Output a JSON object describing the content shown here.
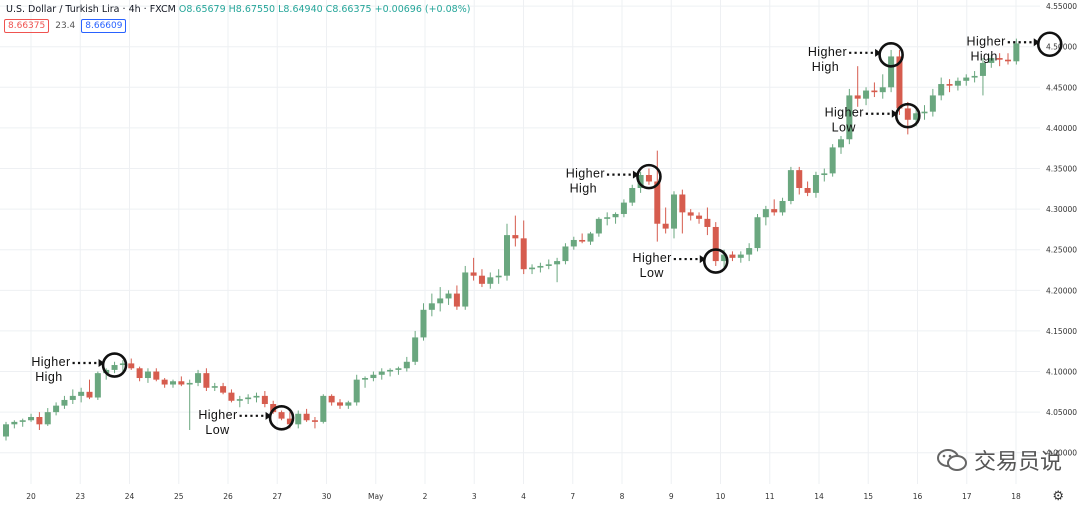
{
  "header": {
    "symbol": "U.S. Dollar / Turkish Lira",
    "interval": "4h",
    "source": "FXCM",
    "ohlc_text": "O8.65679 H8.67550 L8.64940 C8.66375 +0.00696 (+0.08%)",
    "bid": "8.66375",
    "spread": "23.4",
    "ask": "8.66609"
  },
  "watermark": {
    "text": "交易员说",
    "icon": "wechat-icon"
  },
  "settings": {
    "icon": "gear-icon"
  },
  "colors": {
    "up": "#6aa77f",
    "down": "#d65c4e",
    "annotation": "#111111"
  },
  "chart_data": {
    "type": "candlestick",
    "y_axis": {
      "position": "right",
      "min": 3.9615,
      "max": 4.5575,
      "ticks": [
        "4.55000",
        "4.50000",
        "4.45000",
        "4.40000",
        "4.35000",
        "4.30000",
        "4.25000",
        "4.20000",
        "4.15000",
        "4.10000",
        "4.05000",
        "4.00000"
      ]
    },
    "x_axis": {
      "labels": [
        "20",
        "23",
        "24",
        "25",
        "26",
        "27",
        "30",
        "May",
        "2",
        "3",
        "4",
        "7",
        "8",
        "9",
        "10",
        "11",
        "14",
        "15",
        "16",
        "17",
        "18"
      ]
    },
    "grid": true,
    "candles": [
      [
        4.02,
        4.038,
        4.015,
        4.035
      ],
      [
        4.035,
        4.04,
        4.03,
        4.038
      ],
      [
        4.038,
        4.042,
        4.032,
        4.04
      ],
      [
        4.04,
        4.048,
        4.038,
        4.044
      ],
      [
        4.044,
        4.05,
        4.028,
        4.035
      ],
      [
        4.035,
        4.055,
        4.033,
        4.05
      ],
      [
        4.05,
        4.062,
        4.046,
        4.058
      ],
      [
        4.058,
        4.07,
        4.054,
        4.065
      ],
      [
        4.065,
        4.078,
        4.06,
        4.07
      ],
      [
        4.07,
        4.08,
        4.062,
        4.075
      ],
      [
        4.075,
        4.09,
        4.066,
        4.068
      ],
      [
        4.068,
        4.1,
        4.065,
        4.098
      ],
      [
        4.098,
        4.104,
        4.09,
        4.102
      ],
      [
        4.102,
        4.112,
        4.098,
        4.108
      ],
      [
        4.108,
        4.114,
        4.1,
        4.11
      ],
      [
        4.11,
        4.116,
        4.102,
        4.104
      ],
      [
        4.104,
        4.106,
        4.088,
        4.092
      ],
      [
        4.092,
        4.104,
        4.086,
        4.1
      ],
      [
        4.1,
        4.104,
        4.088,
        4.09
      ],
      [
        4.09,
        4.092,
        4.08,
        4.084
      ],
      [
        4.084,
        4.09,
        4.08,
        4.088
      ],
      [
        4.088,
        4.094,
        4.082,
        4.084
      ],
      [
        4.084,
        4.09,
        4.028,
        4.086
      ],
      [
        4.086,
        4.102,
        4.082,
        4.098
      ],
      [
        4.098,
        4.104,
        4.076,
        4.08
      ],
      [
        4.08,
        4.086,
        4.076,
        4.082
      ],
      [
        4.082,
        4.086,
        4.072,
        4.074
      ],
      [
        4.074,
        4.078,
        4.062,
        4.064
      ],
      [
        4.064,
        4.07,
        4.056,
        4.066
      ],
      [
        4.066,
        4.072,
        4.06,
        4.068
      ],
      [
        4.068,
        4.074,
        4.062,
        4.07
      ],
      [
        4.07,
        4.076,
        4.056,
        4.06
      ],
      [
        4.06,
        4.064,
        4.048,
        4.05
      ],
      [
        4.05,
        4.052,
        4.04,
        4.042
      ],
      [
        4.042,
        4.05,
        4.03,
        4.035
      ],
      [
        4.035,
        4.052,
        4.03,
        4.048
      ],
      [
        4.048,
        4.054,
        4.038,
        4.04
      ],
      [
        4.04,
        4.044,
        4.03,
        4.038
      ],
      [
        4.038,
        4.072,
        4.036,
        4.07
      ],
      [
        4.07,
        4.072,
        4.058,
        4.062
      ],
      [
        4.062,
        4.066,
        4.054,
        4.058
      ],
      [
        4.058,
        4.064,
        4.054,
        4.062
      ],
      [
        4.062,
        4.096,
        4.058,
        4.09
      ],
      [
        4.09,
        4.094,
        4.08,
        4.092
      ],
      [
        4.092,
        4.1,
        4.088,
        4.096
      ],
      [
        4.096,
        4.104,
        4.09,
        4.1
      ],
      [
        4.1,
        4.104,
        4.094,
        4.102
      ],
      [
        4.102,
        4.106,
        4.096,
        4.104
      ],
      [
        4.104,
        4.118,
        4.1,
        4.112
      ],
      [
        4.112,
        4.15,
        4.108,
        4.142
      ],
      [
        4.142,
        4.184,
        4.138,
        4.176
      ],
      [
        4.176,
        4.196,
        4.168,
        4.184
      ],
      [
        4.184,
        4.204,
        4.174,
        4.19
      ],
      [
        4.19,
        4.2,
        4.182,
        4.196
      ],
      [
        4.196,
        4.206,
        4.176,
        4.18
      ],
      [
        4.18,
        4.23,
        4.176,
        4.222
      ],
      [
        4.222,
        4.24,
        4.212,
        4.218
      ],
      [
        4.218,
        4.226,
        4.204,
        4.208
      ],
      [
        4.208,
        4.222,
        4.202,
        4.216
      ],
      [
        4.216,
        4.226,
        4.208,
        4.218
      ],
      [
        4.218,
        4.282,
        4.212,
        4.268
      ],
      [
        4.268,
        4.292,
        4.254,
        4.264
      ],
      [
        4.264,
        4.286,
        4.22,
        4.226
      ],
      [
        4.226,
        4.232,
        4.22,
        4.228
      ],
      [
        4.228,
        4.234,
        4.222,
        4.23
      ],
      [
        4.23,
        4.238,
        4.226,
        4.232
      ],
      [
        4.232,
        4.24,
        4.21,
        4.236
      ],
      [
        4.236,
        4.258,
        4.232,
        4.254
      ],
      [
        4.254,
        4.266,
        4.25,
        4.262
      ],
      [
        4.262,
        4.27,
        4.258,
        4.26
      ],
      [
        4.26,
        4.272,
        4.256,
        4.27
      ],
      [
        4.27,
        4.29,
        4.266,
        4.288
      ],
      [
        4.288,
        4.296,
        4.28,
        4.29
      ],
      [
        4.29,
        4.296,
        4.282,
        4.294
      ],
      [
        4.294,
        4.312,
        4.29,
        4.308
      ],
      [
        4.308,
        4.33,
        4.304,
        4.326
      ],
      [
        4.326,
        4.346,
        4.32,
        4.342
      ],
      [
        4.342,
        4.35,
        4.33,
        4.334
      ],
      [
        4.334,
        4.372,
        4.26,
        4.282
      ],
      [
        4.282,
        4.302,
        4.27,
        4.276
      ],
      [
        4.276,
        4.322,
        4.264,
        4.318
      ],
      [
        4.318,
        4.324,
        4.27,
        4.296
      ],
      [
        4.296,
        4.3,
        4.286,
        4.292
      ],
      [
        4.292,
        4.296,
        4.282,
        4.288
      ],
      [
        4.288,
        4.302,
        4.268,
        4.278
      ],
      [
        4.278,
        4.284,
        4.23,
        4.236
      ],
      [
        4.236,
        4.25,
        4.226,
        4.244
      ],
      [
        4.244,
        4.248,
        4.236,
        4.24
      ],
      [
        4.24,
        4.248,
        4.234,
        4.244
      ],
      [
        4.244,
        4.258,
        4.236,
        4.252
      ],
      [
        4.252,
        4.294,
        4.248,
        4.29
      ],
      [
        4.29,
        4.304,
        4.28,
        4.3
      ],
      [
        4.3,
        4.312,
        4.292,
        4.296
      ],
      [
        4.296,
        4.314,
        4.292,
        4.31
      ],
      [
        4.31,
        4.352,
        4.306,
        4.348
      ],
      [
        4.348,
        4.352,
        4.318,
        4.326
      ],
      [
        4.326,
        4.334,
        4.316,
        4.32
      ],
      [
        4.32,
        4.346,
        4.314,
        4.342
      ],
      [
        4.342,
        4.35,
        4.334,
        4.344
      ],
      [
        4.344,
        4.38,
        4.34,
        4.376
      ],
      [
        4.376,
        4.39,
        4.368,
        4.386
      ],
      [
        4.386,
        4.448,
        4.38,
        4.44
      ],
      [
        4.44,
        4.476,
        4.426,
        4.436
      ],
      [
        4.436,
        4.45,
        4.428,
        4.446
      ],
      [
        4.446,
        4.456,
        4.438,
        4.444
      ],
      [
        4.444,
        4.466,
        4.436,
        4.45
      ],
      [
        4.45,
        4.496,
        4.444,
        4.488
      ],
      [
        4.488,
        4.496,
        4.416,
        4.424
      ],
      [
        4.424,
        4.432,
        4.392,
        4.41
      ],
      [
        4.41,
        4.424,
        4.402,
        4.418
      ],
      [
        4.418,
        4.428,
        4.41,
        4.42
      ],
      [
        4.42,
        4.448,
        4.414,
        4.44
      ],
      [
        4.44,
        4.462,
        4.434,
        4.454
      ],
      [
        4.454,
        4.46,
        4.444,
        4.452
      ],
      [
        4.452,
        4.462,
        4.446,
        4.458
      ],
      [
        4.458,
        4.466,
        4.452,
        4.462
      ],
      [
        4.462,
        4.47,
        4.456,
        4.464
      ],
      [
        4.464,
        4.486,
        4.44,
        4.48
      ],
      [
        4.48,
        4.49,
        4.474,
        4.486
      ],
      [
        4.486,
        4.492,
        4.476,
        4.484
      ],
      [
        4.484,
        4.492,
        4.478,
        4.482
      ],
      [
        4.482,
        4.51,
        4.478,
        4.504
      ]
    ],
    "annotations": [
      {
        "line1": "Higher",
        "line2": "High",
        "candle": 13,
        "price": 4.108
      },
      {
        "line1": "Higher",
        "line2": "Low",
        "candle": 33,
        "price": 4.043
      },
      {
        "line1": "Higher",
        "line2": "High",
        "candle": 77,
        "price": 4.34
      },
      {
        "line1": "Higher",
        "line2": "Low",
        "candle": 85,
        "price": 4.236
      },
      {
        "line1": "Higher",
        "line2": "High",
        "candle": 106,
        "price": 4.49
      },
      {
        "line1": "Higher",
        "line2": "Low",
        "candle": 108,
        "price": 4.415
      },
      {
        "line1": "Higher",
        "line2": "High",
        "candle": 125,
        "price": 4.503
      }
    ]
  }
}
